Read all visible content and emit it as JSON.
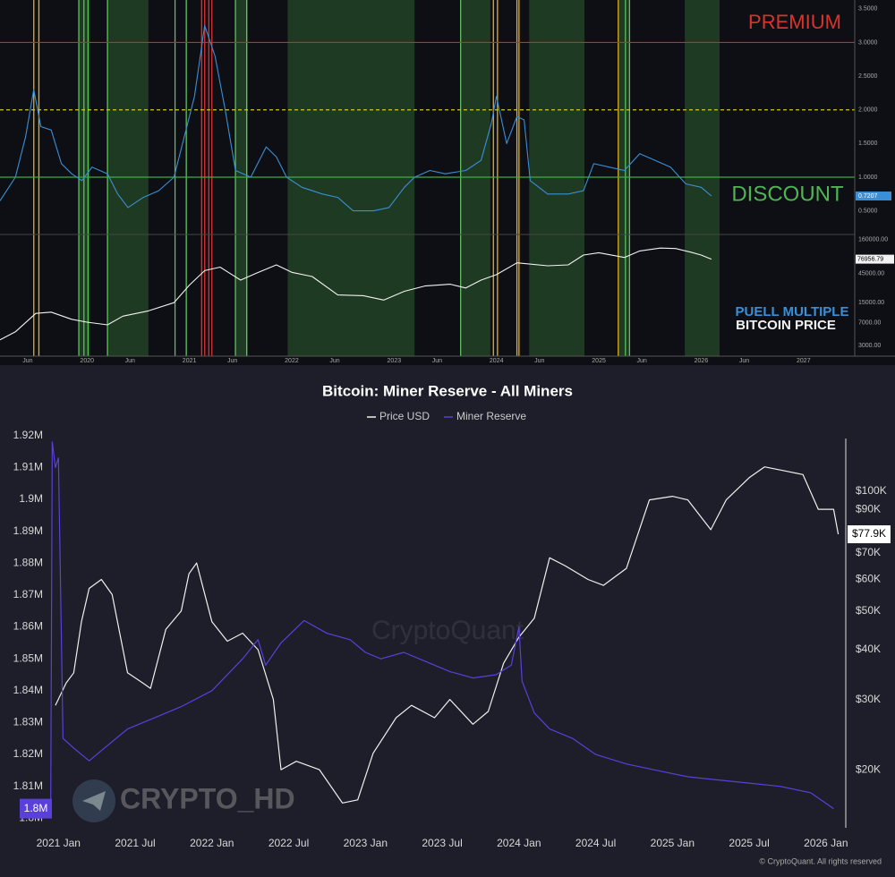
{
  "chart_data": [
    {
      "type": "line",
      "annotations": [
        "PREMIUM",
        "DISCOUNT"
      ],
      "annotation_colors": [
        "#d8342c",
        "#4fb454"
      ],
      "xlim": [
        2019.15,
        2027.5
      ],
      "ylim": [
        0.15,
        3.63
      ],
      "yticks": [
        {
          "value": 3.5,
          "label": "3.5000"
        },
        {
          "value": 3,
          "label": "3.0000"
        },
        {
          "value": 2.5,
          "label": "2.5000"
        },
        {
          "value": 2,
          "label": "2.0000"
        },
        {
          "value": 1.5,
          "label": "1.5000"
        },
        {
          "value": 1,
          "label": "1.0000"
        },
        {
          "value": 0.5,
          "label": "0.5000"
        }
      ],
      "hlines": [
        {
          "value": 3,
          "color": "#c0302a",
          "dashed": false
        },
        {
          "value": 2,
          "color": "#d6c42a",
          "dashed": true
        },
        {
          "value": 1,
          "color": "#3faa47",
          "dashed": false
        }
      ],
      "zones": [
        [
          2019.92,
          2020.03
        ],
        [
          2020.2,
          2020.6
        ],
        [
          2021.45,
          2021.57
        ],
        [
          2021.96,
          2023.2
        ],
        [
          2023.65,
          2023.94
        ],
        [
          2024.32,
          2024.86
        ],
        [
          2025.19,
          2025.3
        ],
        [
          2025.84,
          2026.18
        ]
      ],
      "zone_color": "#1f3a22",
      "vlines": [
        {
          "x": 2019.48,
          "color": "#e0b020"
        },
        {
          "x": 2019.53,
          "color": "#e0b020"
        },
        {
          "x": 2023.97,
          "color": "#e0b020"
        },
        {
          "x": 2024.01,
          "color": "#e0b020"
        },
        {
          "x": 2024.2,
          "color": "#e0b020"
        },
        {
          "x": 2024.22,
          "color": "#e0b020"
        },
        {
          "x": 2025.19,
          "color": "#e0b020"
        },
        {
          "x": 2021.12,
          "color": "#e03030"
        },
        {
          "x": 2021.15,
          "color": "#e03030"
        },
        {
          "x": 2021.19,
          "color": "#e03030"
        },
        {
          "x": 2021.22,
          "color": "#e03030"
        },
        {
          "x": 2019.92,
          "color": "#5fbf5f"
        },
        {
          "x": 2019.97,
          "color": "#5fbf5f"
        },
        {
          "x": 2020.01,
          "color": "#5fbf5f"
        },
        {
          "x": 2020.2,
          "color": "#5fbf5f"
        },
        {
          "x": 2020.86,
          "color": "#5fbf5f"
        },
        {
          "x": 2020.97,
          "color": "#5fbf5f"
        },
        {
          "x": 2021.45,
          "color": "#5fbf5f"
        },
        {
          "x": 2021.56,
          "color": "#5fbf5f"
        },
        {
          "x": 2023.65,
          "color": "#5fbf5f"
        },
        {
          "x": 2025.26,
          "color": "#5fbf5f"
        },
        {
          "x": 2025.3,
          "color": "#5fbf5f"
        }
      ],
      "series": [
        {
          "name": "PUELL MULTIPLE",
          "color": "#3a8fd6",
          "x": [
            2019.15,
            2019.3,
            2019.4,
            2019.48,
            2019.55,
            2019.65,
            2019.75,
            2019.85,
            2019.95,
            2020.05,
            2020.2,
            2020.3,
            2020.4,
            2020.55,
            2020.7,
            2020.85,
            2020.95,
            2021.05,
            2021.15,
            2021.25,
            2021.35,
            2021.45,
            2021.6,
            2021.75,
            2021.85,
            2021.95,
            2022.1,
            2022.3,
            2022.45,
            2022.6,
            2022.8,
            2022.95,
            2023.1,
            2023.2,
            2023.35,
            2023.5,
            2023.7,
            2023.85,
            2023.95,
            2024.0,
            2024.1,
            2024.2,
            2024.27,
            2024.33,
            2024.5,
            2024.7,
            2024.85,
            2024.95,
            2025.1,
            2025.25,
            2025.4,
            2025.55,
            2025.7,
            2025.85,
            2026.0,
            2026.1
          ],
          "values": [
            0.65,
            1.0,
            1.6,
            2.3,
            1.75,
            1.7,
            1.2,
            1.05,
            0.95,
            1.15,
            1.05,
            0.75,
            0.55,
            0.7,
            0.8,
            1.0,
            1.6,
            2.2,
            3.25,
            2.8,
            2.0,
            1.1,
            1.0,
            1.45,
            1.3,
            1.0,
            0.85,
            0.75,
            0.7,
            0.5,
            0.5,
            0.55,
            0.85,
            1.0,
            1.1,
            1.05,
            1.1,
            1.25,
            1.8,
            2.2,
            1.5,
            1.9,
            1.85,
            0.95,
            0.75,
            0.75,
            0.8,
            1.2,
            1.15,
            1.1,
            1.35,
            1.25,
            1.15,
            0.9,
            0.85,
            0.7207
          ]
        }
      ]
    },
    {
      "type": "line",
      "log_y": true,
      "xlim": [
        2019.15,
        2027.5
      ],
      "xticks": [
        {
          "value": 2019.42,
          "label": "Jun"
        },
        2020,
        {
          "value": 2020.42,
          "label": "Jun"
        },
        2021,
        {
          "value": 2021.42,
          "label": "Jun"
        },
        2022,
        {
          "value": 2022.42,
          "label": "Jun"
        },
        2023,
        {
          "value": 2023.42,
          "label": "Jun"
        },
        2024,
        {
          "value": 2024.42,
          "label": "Jun"
        },
        2025,
        {
          "value": 2025.42,
          "label": "Jun"
        },
        2026,
        {
          "value": 2026.42,
          "label": "Jun"
        },
        2027
      ],
      "ylim": [
        2000,
        195000
      ],
      "yticks": [
        {
          "value": 160000,
          "label": "160000.00"
        },
        {
          "value": 45000,
          "label": "45000.00"
        },
        {
          "value": 15000,
          "label": "15000.00"
        },
        {
          "value": 7000,
          "label": "7000.00"
        },
        {
          "value": 3000,
          "label": "3000.00"
        }
      ],
      "series": [
        {
          "name": "BITCOIN PRICE",
          "color": "#f2f2f2",
          "x": [
            2019.15,
            2019.3,
            2019.5,
            2019.65,
            2019.85,
            2020.0,
            2020.2,
            2020.35,
            2020.6,
            2020.85,
            2021.0,
            2021.15,
            2021.3,
            2021.5,
            2021.65,
            2021.85,
            2022.0,
            2022.2,
            2022.45,
            2022.7,
            2022.9,
            2023.1,
            2023.3,
            2023.55,
            2023.7,
            2023.85,
            2024.0,
            2024.2,
            2024.5,
            2024.7,
            2024.85,
            2025.0,
            2025.25,
            2025.4,
            2025.6,
            2025.75,
            2025.9,
            2026.0,
            2026.1
          ],
          "values": [
            3700,
            5000,
            10000,
            10500,
            8000,
            7200,
            6500,
            9000,
            11000,
            15000,
            29000,
            50000,
            57000,
            35000,
            45000,
            62000,
            47000,
            40000,
            20000,
            19500,
            16500,
            23000,
            28000,
            30000,
            26000,
            35000,
            43000,
            67000,
            60000,
            62000,
            90000,
            98000,
            82000,
            105000,
            117000,
            115000,
            100000,
            90000,
            76956.79
          ]
        }
      ]
    },
    {
      "type": "line",
      "title": "Bitcoin: Miner Reserve - All Miners",
      "watermarks": [
        "CryptoQuant",
        "CRYPTO_HD"
      ],
      "credit": "© CryptoQuant. All rights reserved",
      "xlim": [
        2020.94,
        2026.1
      ],
      "xticks": [
        {
          "value": 2021,
          "label": "2021 Jan"
        },
        {
          "value": 2021.5,
          "label": "2021 Jul"
        },
        {
          "value": 2022,
          "label": "2022 Jan"
        },
        {
          "value": 2022.5,
          "label": "2022 Jul"
        },
        {
          "value": 2023,
          "label": "2023 Jan"
        },
        {
          "value": 2023.5,
          "label": "2023 Jul"
        },
        {
          "value": 2024,
          "label": "2024 Jan"
        },
        {
          "value": 2024.5,
          "label": "2024 Jul"
        },
        {
          "value": 2025,
          "label": "2025 Jan"
        },
        {
          "value": 2025.5,
          "label": "2025 Jul"
        },
        {
          "value": 2026,
          "label": "2026 Jan"
        }
      ],
      "ylim": [
        1797000,
        1920500
      ],
      "yticks": [
        {
          "value": 1800000,
          "label": "1.8M"
        },
        {
          "value": 1810000,
          "label": "1.81M"
        },
        {
          "value": 1820000,
          "label": "1.82M"
        },
        {
          "value": 1830000,
          "label": "1.83M"
        },
        {
          "value": 1840000,
          "label": "1.84M"
        },
        {
          "value": 1850000,
          "label": "1.85M"
        },
        {
          "value": 1860000,
          "label": "1.86M"
        },
        {
          "value": 1870000,
          "label": "1.87M"
        },
        {
          "value": 1880000,
          "label": "1.88M"
        },
        {
          "value": 1890000,
          "label": "1.89M"
        },
        {
          "value": 1900000,
          "label": "1.9M"
        },
        {
          "value": 1910000,
          "label": "1.91M"
        },
        {
          "value": 1920000,
          "label": "1.92M"
        }
      ],
      "y2_log": true,
      "y2lim": [
        14300,
        139000
      ],
      "y2ticks": [
        {
          "value": 20000,
          "label": "$20K"
        },
        {
          "value": 30000,
          "label": "$30K"
        },
        {
          "value": 40000,
          "label": "$40K"
        },
        {
          "value": 50000,
          "label": "$50K"
        },
        {
          "value": 60000,
          "label": "$60K"
        },
        {
          "value": 70000,
          "label": "$70K"
        },
        {
          "value": 90000,
          "label": "$90K"
        },
        {
          "value": 100000,
          "label": "$100K"
        }
      ],
      "series": [
        {
          "name": "Price USD",
          "color": "#f0f0f0",
          "axis": "y2",
          "last_value_label": "$77.9K",
          "x": [
            2020.98,
            2021.05,
            2021.1,
            2021.15,
            2021.2,
            2021.28,
            2021.35,
            2021.45,
            2021.55,
            2021.6,
            2021.7,
            2021.8,
            2021.85,
            2021.9,
            2022.0,
            2022.1,
            2022.2,
            2022.3,
            2022.4,
            2022.45,
            2022.55,
            2022.7,
            2022.85,
            2022.95,
            2023.05,
            2023.2,
            2023.3,
            2023.45,
            2023.55,
            2023.7,
            2023.8,
            2023.9,
            2024.0,
            2024.1,
            2024.2,
            2024.3,
            2024.45,
            2024.55,
            2024.7,
            2024.85,
            2025.0,
            2025.1,
            2025.25,
            2025.35,
            2025.5,
            2025.6,
            2025.75,
            2025.85,
            2025.95,
            2026.05,
            2026.08
          ],
          "values": [
            29000,
            33000,
            35000,
            47000,
            57000,
            60000,
            55000,
            35000,
            33000,
            32000,
            45000,
            50000,
            62000,
            66000,
            47000,
            42000,
            44000,
            40000,
            30000,
            20000,
            21000,
            20000,
            16500,
            16800,
            22000,
            27000,
            29000,
            27000,
            30000,
            26000,
            28000,
            37000,
            43000,
            48000,
            68000,
            65000,
            60000,
            58000,
            64000,
            95000,
            97000,
            95000,
            80000,
            95000,
            108000,
            115000,
            112000,
            110000,
            90000,
            90000,
            77900
          ]
        },
        {
          "name": "Miner Reserve",
          "color": "#5b3fdc",
          "axis": "y",
          "last_value_label": "1.8M",
          "x": [
            2020.95,
            2020.96,
            2020.98,
            2021.0,
            2021.03,
            2021.1,
            2021.2,
            2021.3,
            2021.45,
            2021.6,
            2021.8,
            2022.0,
            2022.1,
            2022.2,
            2022.3,
            2022.35,
            2022.45,
            2022.6,
            2022.75,
            2022.9,
            2023.0,
            2023.1,
            2023.25,
            2023.4,
            2023.55,
            2023.7,
            2023.85,
            2023.95,
            2024.0,
            2024.02,
            2024.1,
            2024.2,
            2024.35,
            2024.5,
            2024.7,
            2024.9,
            2025.1,
            2025.3,
            2025.5,
            2025.7,
            2025.9,
            2026.05
          ],
          "values": [
            1805000,
            1918000,
            1910000,
            1913000,
            1825000,
            1822000,
            1818000,
            1822000,
            1828000,
            1831000,
            1835000,
            1840000,
            1845000,
            1850000,
            1856000,
            1848000,
            1855000,
            1862000,
            1858000,
            1856000,
            1852000,
            1850000,
            1852000,
            1849000,
            1846000,
            1844000,
            1845000,
            1848000,
            1860000,
            1843000,
            1833000,
            1828000,
            1825000,
            1820000,
            1817000,
            1815000,
            1813000,
            1812000,
            1811000,
            1810000,
            1808000,
            1803000
          ]
        }
      ]
    }
  ]
}
